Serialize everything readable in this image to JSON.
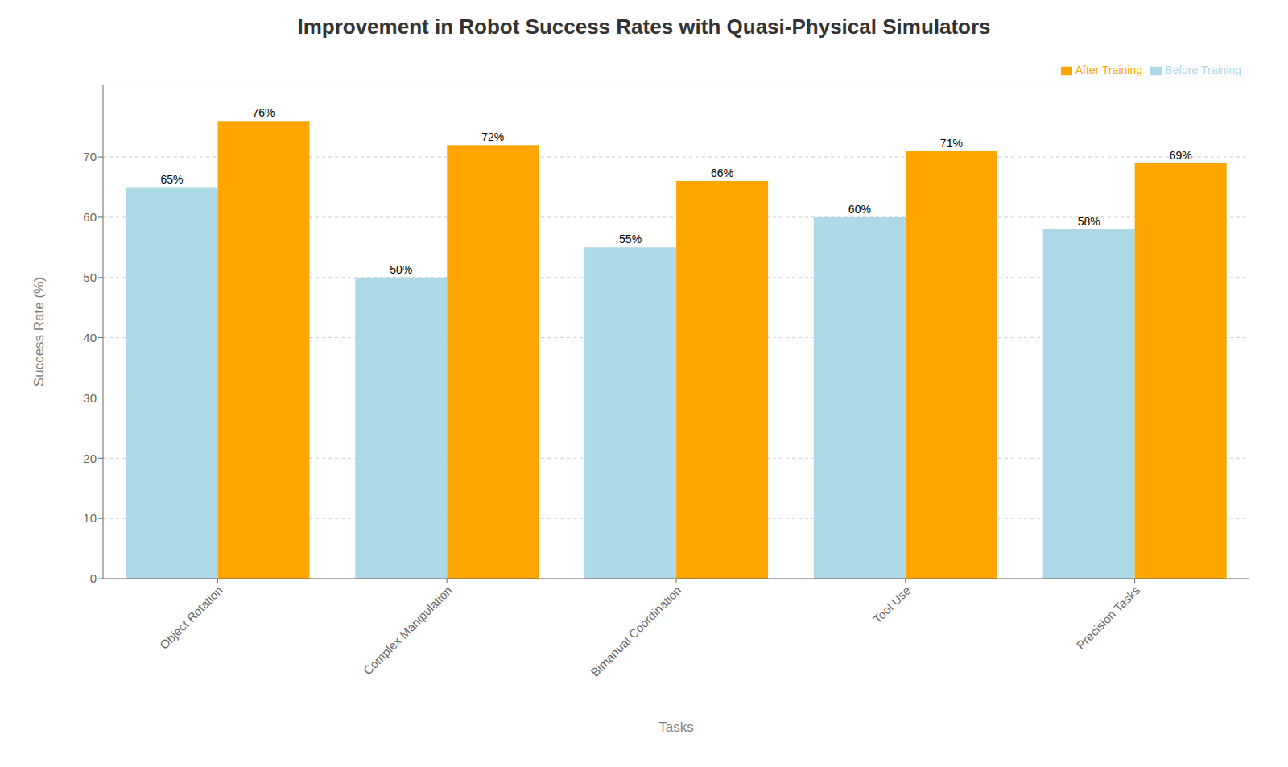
{
  "chart_data": {
    "type": "bar",
    "title": "Improvement in Robot Success Rates with Quasi-Physical Simulators",
    "xlabel": "Tasks",
    "ylabel": "Success Rate (%)",
    "categories": [
      "Object Rotation",
      "Complex Manipulation",
      "Bimanual Coordination",
      "Tool Use",
      "Precision Tasks"
    ],
    "series": [
      {
        "name": "Before Training",
        "color": "#ADD8E6",
        "values": [
          65,
          50,
          55,
          60,
          58
        ],
        "value_labels": [
          "65%",
          "50%",
          "55%",
          "60%",
          "58%"
        ]
      },
      {
        "name": "After Training",
        "color": "#FFA500",
        "values": [
          76,
          72,
          66,
          71,
          69
        ],
        "value_labels": [
          "76%",
          "72%",
          "66%",
          "71%",
          "69%"
        ]
      }
    ],
    "ylim": [
      0,
      82
    ],
    "yticks": [
      0,
      10,
      20,
      30,
      40,
      50,
      60,
      70
    ],
    "grid": true,
    "legend": "upper right",
    "data_labels": true
  }
}
